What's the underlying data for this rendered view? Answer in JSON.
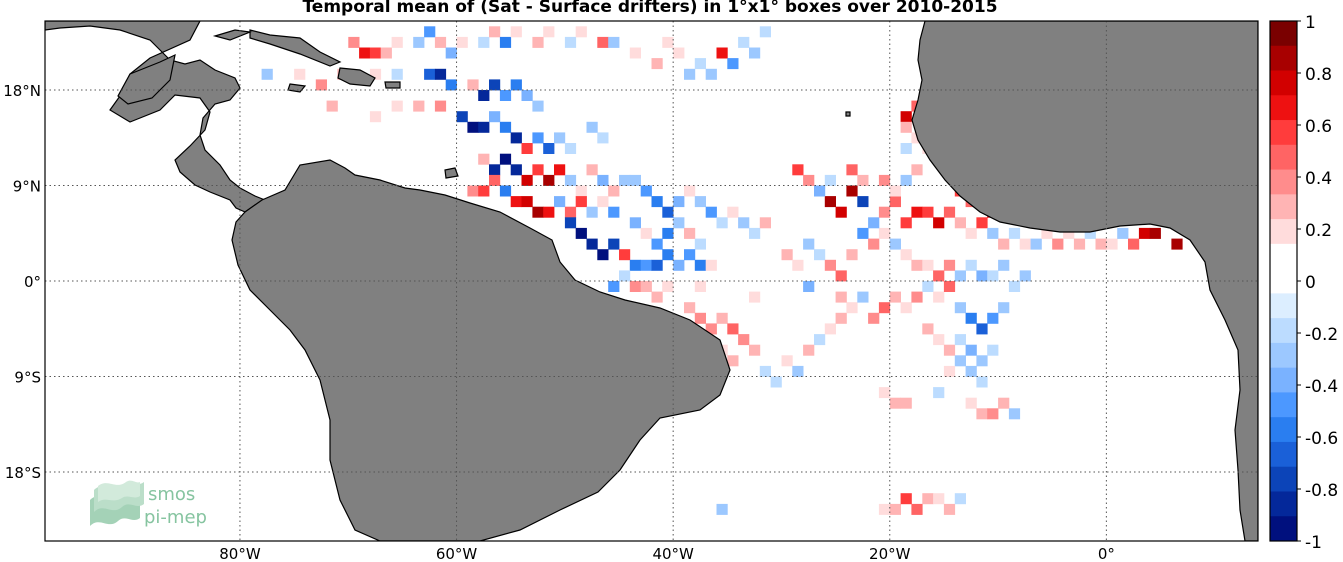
{
  "title": "Temporal mean of (Sat - Surface drifters) in 1°x1° boxes over 2010-2015",
  "map": {
    "lon_range": [
      -98,
      14
    ],
    "lat_range": [
      -24.5,
      24.5
    ],
    "lat_labels": [
      {
        "lat": 18,
        "text": "18°N"
      },
      {
        "lat": 9,
        "text": "9°N"
      },
      {
        "lat": 0,
        "text": "0°"
      },
      {
        "lat": -9,
        "text": "9°S"
      },
      {
        "lat": -18,
        "text": "18°S"
      }
    ],
    "lon_labels": [
      {
        "lon": -80,
        "text": "80°W"
      },
      {
        "lon": -60,
        "text": "60°W"
      },
      {
        "lon": -40,
        "text": "40°W"
      },
      {
        "lon": -20,
        "text": "20°W"
      },
      {
        "lon": 0,
        "text": "0°"
      }
    ],
    "grid": true,
    "land_color": "#808080",
    "ocean_color": "#ffffff"
  },
  "colorbar": {
    "range": [
      -1,
      1
    ],
    "labels": [
      "1",
      "0.8",
      "0.6",
      "0.4",
      "0.2",
      "0",
      "-0.2",
      "-0.4",
      "-0.6",
      "-0.8",
      "-1"
    ],
    "colors_top_to_bottom": [
      "#7a0000",
      "#a80000",
      "#d20000",
      "#ee1111",
      "#ff3c3c",
      "#ff6464",
      "#ff8c8c",
      "#ffb4b4",
      "#ffdcdc",
      "#ffffff",
      "#ffffff",
      "#dceeff",
      "#bcdcff",
      "#9cc8ff",
      "#7ab2ff",
      "#4c98ff",
      "#2a7ef0",
      "#1a60d8",
      "#0c44b8",
      "#04289a",
      "#00107e"
    ]
  },
  "logo": {
    "line1": "smos",
    "line2": "pi-mep"
  },
  "chart_data": {
    "type": "heatmap",
    "title": "Temporal mean of (Sat - Surface drifters) in 1°x1° boxes over 2010-2015",
    "grid_resolution_deg": 1,
    "value_range": [
      -1,
      1
    ],
    "x_ticks": [
      "80°W",
      "60°W",
      "40°W",
      "20°W",
      "0°"
    ],
    "y_ticks": [
      "18°N",
      "9°N",
      "0°",
      "9°S",
      "18°S"
    ],
    "cells": [
      [
        -70,
        22,
        0.4
      ],
      [
        -69,
        21,
        0.7
      ],
      [
        -68,
        21,
        0.6
      ],
      [
        -67,
        21,
        0.3
      ],
      [
        -66,
        22,
        0.2
      ],
      [
        -64,
        22,
        -0.3
      ],
      [
        -63,
        23,
        -0.5
      ],
      [
        -62,
        22,
        0.3
      ],
      [
        -61,
        21,
        -0.4
      ],
      [
        -60,
        22,
        0.2
      ],
      [
        -58,
        22,
        -0.2
      ],
      [
        -57,
        23,
        0.3
      ],
      [
        -56,
        22,
        -0.6
      ],
      [
        -55,
        23,
        0.2
      ],
      [
        -53,
        22,
        0.3
      ],
      [
        -52,
        23,
        0.2
      ],
      [
        -50,
        22,
        -0.2
      ],
      [
        -49,
        23,
        0.2
      ],
      [
        -47,
        22,
        0.5
      ],
      [
        -46,
        22,
        -0.3
      ],
      [
        -44,
        21,
        0.2
      ],
      [
        -78,
        19,
        -0.3
      ],
      [
        -75,
        19,
        0.2
      ],
      [
        -73,
        18,
        0.4
      ],
      [
        -71,
        19,
        0.3
      ],
      [
        -68,
        19,
        0.2
      ],
      [
        -66,
        19,
        -0.2
      ],
      [
        -63,
        19,
        -0.7
      ],
      [
        -62,
        19,
        -0.9
      ],
      [
        -61,
        18,
        -0.6
      ],
      [
        -59,
        18,
        0.3
      ],
      [
        -58,
        17,
        -0.9
      ],
      [
        -57,
        18,
        -0.8
      ],
      [
        -56,
        17,
        -0.5
      ],
      [
        -55,
        18,
        -0.6
      ],
      [
        -54,
        17,
        -0.4
      ],
      [
        -53,
        16,
        -0.3
      ],
      [
        -72,
        16,
        0.3
      ],
      [
        -68,
        15,
        0.2
      ],
      [
        -66,
        16,
        0.2
      ],
      [
        -64,
        16,
        0.3
      ],
      [
        -62,
        16,
        0.4
      ],
      [
        -60,
        15,
        -0.8
      ],
      [
        -59,
        14,
        -1.0
      ],
      [
        -58,
        14,
        -0.9
      ],
      [
        -57,
        15,
        -0.4
      ],
      [
        -56,
        14,
        -0.6
      ],
      [
        -55,
        13,
        -0.9
      ],
      [
        -54,
        12,
        0.6
      ],
      [
        -53,
        13,
        -0.5
      ],
      [
        -52,
        12,
        -0.7
      ],
      [
        -51,
        13,
        -0.3
      ],
      [
        -50,
        12,
        -0.2
      ],
      [
        -48,
        14,
        -0.3
      ],
      [
        -47,
        13,
        -0.2
      ],
      [
        -58,
        11,
        0.3
      ],
      [
        -57,
        10,
        -0.9
      ],
      [
        -56,
        11,
        -1.0
      ],
      [
        -55,
        10,
        -0.9
      ],
      [
        -54,
        9,
        0.8
      ],
      [
        -53,
        10,
        0.6
      ],
      [
        -52,
        9,
        0.9
      ],
      [
        -51,
        10,
        0.7
      ],
      [
        -50,
        9,
        -0.3
      ],
      [
        -49,
        8,
        0.2
      ],
      [
        -48,
        10,
        0.3
      ],
      [
        -47,
        9,
        -0.4
      ],
      [
        -46,
        8,
        0.3
      ],
      [
        -45,
        9,
        -0.3
      ],
      [
        -59,
        8,
        0.4
      ],
      [
        -58,
        8,
        0.6
      ],
      [
        -57,
        9,
        0.5
      ],
      [
        -56,
        8,
        -0.6
      ],
      [
        -55,
        7,
        0.7
      ],
      [
        -54,
        7,
        0.8
      ],
      [
        -53,
        6,
        0.9
      ],
      [
        -52,
        6,
        0.7
      ],
      [
        -51,
        7,
        -0.4
      ],
      [
        -50,
        6,
        0.5
      ],
      [
        -49,
        7,
        0.6
      ],
      [
        -48,
        6,
        -0.3
      ],
      [
        -47,
        7,
        0.2
      ],
      [
        -46,
        6,
        -0.5
      ],
      [
        -50,
        5,
        -0.8
      ],
      [
        -49,
        4,
        -1.0
      ],
      [
        -48,
        3,
        -0.9
      ],
      [
        -47,
        2,
        -1.0
      ],
      [
        -46,
        3,
        -0.8
      ],
      [
        -45,
        2,
        0.6
      ],
      [
        -44,
        5,
        -0.4
      ],
      [
        -43,
        4,
        0.2
      ],
      [
        -42,
        3,
        -0.5
      ],
      [
        -41,
        4,
        -0.6
      ],
      [
        -40,
        5,
        -0.3
      ],
      [
        -39,
        4,
        0.3
      ],
      [
        -38,
        3,
        -0.2
      ],
      [
        -44,
        9,
        -0.3
      ],
      [
        -43,
        8,
        -0.5
      ],
      [
        -42,
        7,
        -0.6
      ],
      [
        -41,
        6,
        -0.7
      ],
      [
        -40,
        7,
        -0.4
      ],
      [
        -39,
        8,
        0.2
      ],
      [
        -38,
        7,
        -0.3
      ],
      [
        -37,
        6,
        -0.5
      ],
      [
        -36,
        5,
        -0.2
      ],
      [
        -35,
        6,
        0.2
      ],
      [
        -34,
        5,
        -0.3
      ],
      [
        -33,
        4,
        -0.2
      ],
      [
        -32,
        5,
        0.3
      ],
      [
        -44,
        1,
        -0.6
      ],
      [
        -43,
        1,
        -0.5
      ],
      [
        -42,
        1,
        -0.7
      ],
      [
        -41,
        2,
        -0.6
      ],
      [
        -40,
        1,
        -0.4
      ],
      [
        -39,
        2,
        -0.5
      ],
      [
        -38,
        1,
        -0.6
      ],
      [
        -37,
        1,
        0.2
      ],
      [
        -45,
        0,
        -0.2
      ],
      [
        -44,
        -1,
        0.4
      ],
      [
        -43,
        -1,
        0.3
      ],
      [
        -42,
        -2,
        0.3
      ],
      [
        -41,
        -1,
        0.2
      ],
      [
        -46,
        -1,
        -0.5
      ],
      [
        -30,
        2,
        0.3
      ],
      [
        -29,
        1,
        0.2
      ],
      [
        -28,
        3,
        -0.3
      ],
      [
        -27,
        2,
        -0.2
      ],
      [
        -26,
        1,
        0.4
      ],
      [
        -25,
        0,
        0.5
      ],
      [
        -24,
        2,
        0.3
      ],
      [
        -23,
        4,
        -0.5
      ],
      [
        -22,
        3,
        0.4
      ],
      [
        -21,
        4,
        0.2
      ],
      [
        -20,
        3,
        -0.3
      ],
      [
        -19,
        2,
        0.2
      ],
      [
        -18,
        1,
        0.3
      ],
      [
        -17,
        1,
        0.2
      ],
      [
        -16,
        0,
        0.5
      ],
      [
        -15,
        1,
        0.4
      ],
      [
        -14,
        0,
        -0.3
      ],
      [
        -13,
        1,
        -0.2
      ],
      [
        -12,
        0,
        -0.4
      ],
      [
        -11,
        0,
        -0.2
      ],
      [
        -10,
        1,
        -0.3
      ],
      [
        -26,
        7,
        0.9
      ],
      [
        -25,
        6,
        0.8
      ],
      [
        -24,
        8,
        0.9
      ],
      [
        -23,
        7,
        -0.8
      ],
      [
        -22,
        5,
        -0.4
      ],
      [
        -21,
        6,
        0.4
      ],
      [
        -20,
        7,
        0.5
      ],
      [
        -19,
        5,
        0.6
      ],
      [
        -18,
        6,
        0.7
      ],
      [
        -17,
        6,
        0.6
      ],
      [
        -16,
        5,
        0.8
      ],
      [
        -15,
        6,
        0.5
      ],
      [
        -14,
        5,
        0.3
      ],
      [
        -13,
        4,
        0.2
      ],
      [
        -12,
        5,
        0.6
      ],
      [
        -11,
        4,
        -0.3
      ],
      [
        -10,
        3,
        0.3
      ],
      [
        -9,
        4,
        -0.2
      ],
      [
        -8,
        3,
        0.2
      ],
      [
        -7,
        3,
        -0.3
      ],
      [
        -6,
        4,
        0.2
      ],
      [
        -5,
        3,
        0.4
      ],
      [
        -4,
        4,
        0.2
      ],
      [
        -3,
        3,
        0.3
      ],
      [
        -2,
        4,
        -0.2
      ],
      [
        -1,
        3,
        0.3
      ],
      [
        0,
        3,
        0.2
      ],
      [
        1,
        4,
        -0.3
      ],
      [
        2,
        3,
        0.5
      ],
      [
        3,
        4,
        0.8
      ],
      [
        4,
        4,
        0.9
      ],
      [
        6,
        3,
        0.9
      ],
      [
        -29,
        10,
        0.6
      ],
      [
        -28,
        9,
        0.4
      ],
      [
        -27,
        8,
        -0.4
      ],
      [
        -26,
        9,
        -0.2
      ],
      [
        -24,
        10,
        0.5
      ],
      [
        -23,
        9,
        0.3
      ],
      [
        -21,
        9,
        0.4
      ],
      [
        -20,
        8,
        0.2
      ],
      [
        -19,
        9,
        -0.3
      ],
      [
        -18,
        10,
        0.3
      ],
      [
        -16,
        11,
        0.5
      ],
      [
        -15,
        10,
        0.7
      ],
      [
        -14,
        8,
        0.6
      ],
      [
        -13,
        7,
        0.5
      ],
      [
        -12,
        8,
        0.9
      ],
      [
        -11,
        6,
        0.8
      ],
      [
        -39,
        -3,
        0.3
      ],
      [
        -38,
        -4,
        0.4
      ],
      [
        -37,
        -5,
        0.4
      ],
      [
        -36,
        -4,
        0.3
      ],
      [
        -35,
        -5,
        0.5
      ],
      [
        -34,
        -6,
        0.4
      ],
      [
        -33,
        -7,
        0.3
      ],
      [
        -36,
        -7,
        0.2
      ],
      [
        -35,
        -8,
        0.3
      ],
      [
        -32,
        -9,
        -0.2
      ],
      [
        -31,
        -10,
        -0.2
      ],
      [
        -30,
        -8,
        0.2
      ],
      [
        -29,
        -9,
        -0.3
      ],
      [
        -28,
        -7,
        0.3
      ],
      [
        -27,
        -6,
        -0.2
      ],
      [
        -26,
        -5,
        0.2
      ],
      [
        -25,
        -4,
        0.3
      ],
      [
        -24,
        -3,
        0.2
      ],
      [
        -23,
        -2,
        -0.3
      ],
      [
        -22,
        -4,
        0.4
      ],
      [
        -21,
        -3,
        0.5
      ],
      [
        -20,
        -2,
        0.3
      ],
      [
        -19,
        -3,
        0.2
      ],
      [
        -18,
        -2,
        0.4
      ],
      [
        -17,
        -1,
        -0.2
      ],
      [
        -16,
        -2,
        0.2
      ],
      [
        -15,
        -1,
        0.5
      ],
      [
        -14,
        -3,
        -0.3
      ],
      [
        -13,
        -4,
        -0.6
      ],
      [
        -12,
        -5,
        -0.7
      ],
      [
        -11,
        -4,
        -0.5
      ],
      [
        -10,
        -3,
        -0.3
      ],
      [
        -9,
        -1,
        -0.2
      ],
      [
        -8,
        0,
        -0.3
      ],
      [
        -17,
        -5,
        0.3
      ],
      [
        -16,
        -6,
        0.2
      ],
      [
        -15,
        -7,
        0.3
      ],
      [
        -14,
        -6,
        -0.2
      ],
      [
        -13,
        -7,
        -0.4
      ],
      [
        -12,
        -8,
        -0.3
      ],
      [
        -11,
        -7,
        -0.2
      ],
      [
        -13,
        -9,
        -0.3
      ],
      [
        -12,
        -10,
        -0.2
      ],
      [
        -14,
        -8,
        -0.3
      ],
      [
        -15,
        -9,
        0.2
      ],
      [
        -21,
        -11,
        0.2
      ],
      [
        -20,
        -12,
        0.3
      ],
      [
        -19,
        -12,
        0.3
      ],
      [
        -16,
        -11,
        -0.2
      ],
      [
        -13,
        -12,
        0.2
      ],
      [
        -12,
        -13,
        0.3
      ],
      [
        -11,
        -13,
        0.4
      ],
      [
        -10,
        -12,
        0.3
      ],
      [
        -9,
        -13,
        -0.3
      ],
      [
        -21,
        -22,
        0.2
      ],
      [
        -20,
        -22,
        0.3
      ],
      [
        -19,
        -21,
        0.6
      ],
      [
        -18,
        -22,
        0.5
      ],
      [
        -17,
        -21,
        0.3
      ],
      [
        -16,
        -21,
        0.2
      ],
      [
        -15,
        -22,
        0.3
      ],
      [
        -14,
        -21,
        -0.2
      ],
      [
        -41,
        -1,
        0.2
      ],
      [
        -38,
        -1,
        0.2
      ],
      [
        -33,
        -2,
        0.2
      ],
      [
        -28,
        -1,
        -0.4
      ],
      [
        -25,
        -2,
        0.3
      ],
      [
        -36,
        -22,
        -0.3
      ],
      [
        -19,
        15,
        0.8
      ],
      [
        -18,
        16,
        0.5
      ],
      [
        -19,
        14,
        0.3
      ],
      [
        -18,
        13,
        0.2
      ],
      [
        -19,
        12,
        -0.2
      ],
      [
        -17,
        12,
        0.2
      ],
      [
        -16,
        15,
        0.4
      ],
      [
        -15,
        14,
        -0.2
      ],
      [
        -39,
        19,
        -0.3
      ],
      [
        -38,
        20,
        -0.2
      ],
      [
        -37,
        19,
        -0.3
      ],
      [
        -36,
        21,
        0.7
      ],
      [
        -35,
        20,
        -0.5
      ],
      [
        -34,
        22,
        -0.2
      ],
      [
        -33,
        21,
        -0.3
      ],
      [
        -32,
        23,
        -0.2
      ],
      [
        -40,
        21,
        0.2
      ],
      [
        -42,
        20,
        0.3
      ],
      [
        -41,
        22,
        0.2
      ]
    ]
  }
}
